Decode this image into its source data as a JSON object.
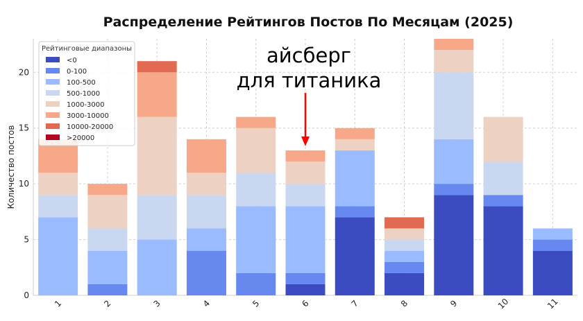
{
  "chart_data": {
    "type": "bar",
    "stacked": true,
    "title": "Распределение Рейтингов Постов По Месяцам (2025)",
    "xlabel": "",
    "ylabel": "Количество постов",
    "categories": [
      "1",
      "2",
      "3",
      "4",
      "5",
      "6",
      "7",
      "8",
      "9",
      "10",
      "11"
    ],
    "ylim": [
      0,
      23
    ],
    "yticks": [
      0,
      5,
      10,
      15,
      20
    ],
    "grid": true,
    "legend": {
      "title": "Рейтинговые диапазоны",
      "position": "top-left"
    },
    "series": [
      {
        "name": "<0",
        "color": "#3b4cc0",
        "values": [
          0,
          0,
          0,
          0,
          0,
          1,
          7,
          2,
          9,
          8,
          4
        ]
      },
      {
        "name": "0-100",
        "color": "#6788ee",
        "values": [
          0,
          1,
          0,
          4,
          2,
          1,
          1,
          1,
          1,
          1,
          1
        ]
      },
      {
        "name": "100-500",
        "color": "#9abbff",
        "values": [
          7,
          3,
          5,
          2,
          6,
          6,
          5,
          1,
          4,
          0,
          1
        ]
      },
      {
        "name": "500-1000",
        "color": "#c9d7f0",
        "values": [
          2,
          2,
          4,
          3,
          3,
          2,
          0,
          1,
          6,
          3,
          0
        ]
      },
      {
        "name": "1000-3000",
        "color": "#edd1c2",
        "values": [
          2,
          3,
          7,
          2,
          4,
          2,
          1,
          1,
          2,
          4,
          0
        ]
      },
      {
        "name": "3000-10000",
        "color": "#f7a889",
        "values": [
          3,
          1,
          4,
          3,
          1,
          1,
          1,
          0,
          1,
          0,
          0
        ]
      },
      {
        "name": "10000-20000",
        "color": "#e26952",
        "values": [
          0,
          0,
          1,
          0,
          0,
          0,
          0,
          1,
          0,
          0,
          0
        ]
      },
      {
        "name": ">20000",
        "color": "#b40426",
        "values": [
          0,
          0,
          0,
          0,
          0,
          0,
          0,
          0,
          0,
          0,
          0
        ]
      }
    ],
    "annotation": {
      "lines": [
        "айсберг",
        "для титаника"
      ],
      "target_category": "6",
      "arrow_color": "#ff0000"
    }
  }
}
